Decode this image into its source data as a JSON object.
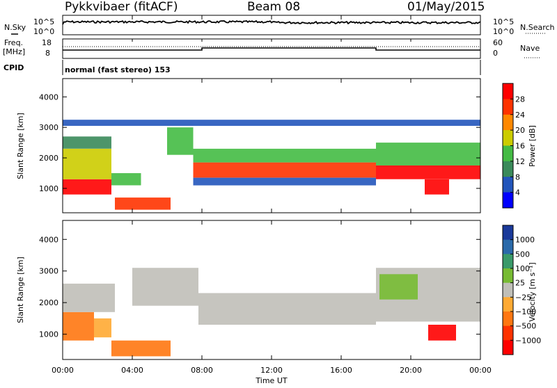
{
  "header": {
    "radar": "Pykkvibaer (fitACF)",
    "beam": "Beam 08",
    "date": "01/May/2015"
  },
  "side_labels": {
    "nsky": "N.Sky",
    "nsearch": "N.Search",
    "freq_line1": "Freq.",
    "freq_line2": "[MHz]",
    "nave": "Nave",
    "cpid": "CPID"
  },
  "noise_ticks": {
    "left_top": "10^5",
    "left_bottom": "10^0",
    "right_top": "10^5",
    "right_bottom": "10^0"
  },
  "freq_ticks": {
    "left_top": "18",
    "left_bottom": "8",
    "right_top": "60",
    "right_bottom": "0"
  },
  "cpid_text": "normal (fast stereo) 153",
  "chart_data": [
    {
      "type": "heatmap",
      "panel": "power",
      "ylabel": "Slant Range [km]",
      "ylim": [
        200,
        4600
      ],
      "yticks": [
        "1000",
        "2000",
        "3000",
        "4000"
      ],
      "colorbar_label": "Power [dB]",
      "colorbar_ticks": [
        "4",
        "8",
        "12",
        "16",
        "20",
        "24",
        "28"
      ],
      "colors": [
        "#0000ff",
        "#2255bb",
        "#3a8a5a",
        "#44bb44",
        "#cccc00",
        "#ff8800",
        "#ff3300",
        "#ff0000"
      ],
      "echo_regions": [
        {
          "t0": 0.0,
          "t1": 2.8,
          "r0": 800,
          "r1": 1300,
          "level": 7
        },
        {
          "t0": 0.0,
          "t1": 2.8,
          "r0": 1300,
          "r1": 2300,
          "level": 4
        },
        {
          "t0": 0.0,
          "t1": 2.8,
          "r0": 2300,
          "r1": 2700,
          "level": 2
        },
        {
          "t0": 2.8,
          "t1": 4.5,
          "r0": 1100,
          "r1": 1500,
          "level": 3
        },
        {
          "t0": 3.0,
          "t1": 6.2,
          "r0": 300,
          "r1": 700,
          "level": 6
        },
        {
          "t0": 6.0,
          "t1": 7.5,
          "r0": 2100,
          "r1": 3000,
          "level": 3
        },
        {
          "t0": 7.5,
          "t1": 18.0,
          "r0": 1350,
          "r1": 1850,
          "level": 6
        },
        {
          "t0": 7.5,
          "t1": 18.0,
          "r0": 1850,
          "r1": 2300,
          "level": 3
        },
        {
          "t0": 7.5,
          "t1": 18.0,
          "r0": 1100,
          "r1": 1350,
          "level": 1
        },
        {
          "t0": 18.0,
          "t1": 24.0,
          "r0": 1300,
          "r1": 1750,
          "level": 7
        },
        {
          "t0": 18.0,
          "t1": 24.0,
          "r0": 1750,
          "r1": 2500,
          "level": 3
        },
        {
          "t0": 20.8,
          "t1": 22.2,
          "r0": 800,
          "r1": 1300,
          "level": 7
        },
        {
          "t0": 0.0,
          "t1": 24.0,
          "r0": 3050,
          "r1": 3250,
          "level": 1
        }
      ]
    },
    {
      "type": "heatmap",
      "panel": "velocity",
      "ylabel": "Slant Range [km]",
      "ylim": [
        200,
        4600
      ],
      "yticks": [
        "1000",
        "2000",
        "3000",
        "4000"
      ],
      "colorbar_label": "Velocity [m s⁻¹]",
      "colorbar_ticks": [
        "1000",
        "500",
        "100",
        "25",
        "−25",
        "−100",
        "−500",
        "−1000"
      ],
      "colors": [
        "#1a3a9a",
        "#2a6aaa",
        "#3a9a6a",
        "#77bb33",
        "#c0bfb8",
        "#ffaa33",
        "#ff7711",
        "#ff3300",
        "#ff0000"
      ],
      "echo_regions": [
        {
          "t0": 0.0,
          "t1": 1.8,
          "r0": 800,
          "r1": 1700,
          "level": 6
        },
        {
          "t0": 1.8,
          "t1": 2.8,
          "r0": 900,
          "r1": 1500,
          "level": 5
        },
        {
          "t0": 2.8,
          "t1": 6.2,
          "r0": 300,
          "r1": 800,
          "level": 6
        },
        {
          "t0": 0.0,
          "t1": 3.0,
          "r0": 1700,
          "r1": 2600,
          "level": 4
        },
        {
          "t0": 4.0,
          "t1": 7.8,
          "r0": 1900,
          "r1": 3100,
          "level": 4
        },
        {
          "t0": 7.8,
          "t1": 18.0,
          "r0": 1300,
          "r1": 2300,
          "level": 4
        },
        {
          "t0": 18.0,
          "t1": 24.0,
          "r0": 1400,
          "r1": 3100,
          "level": 4
        },
        {
          "t0": 18.2,
          "t1": 20.4,
          "r0": 2100,
          "r1": 2900,
          "level": 3
        },
        {
          "t0": 21.0,
          "t1": 22.6,
          "r0": 800,
          "r1": 1300,
          "level": 8
        }
      ]
    }
  ],
  "x_axis": {
    "ticks": [
      "00:00",
      "04:00",
      "08:00",
      "12:00",
      "16:00",
      "20:00",
      "00:00"
    ],
    "label": "Time UT"
  }
}
